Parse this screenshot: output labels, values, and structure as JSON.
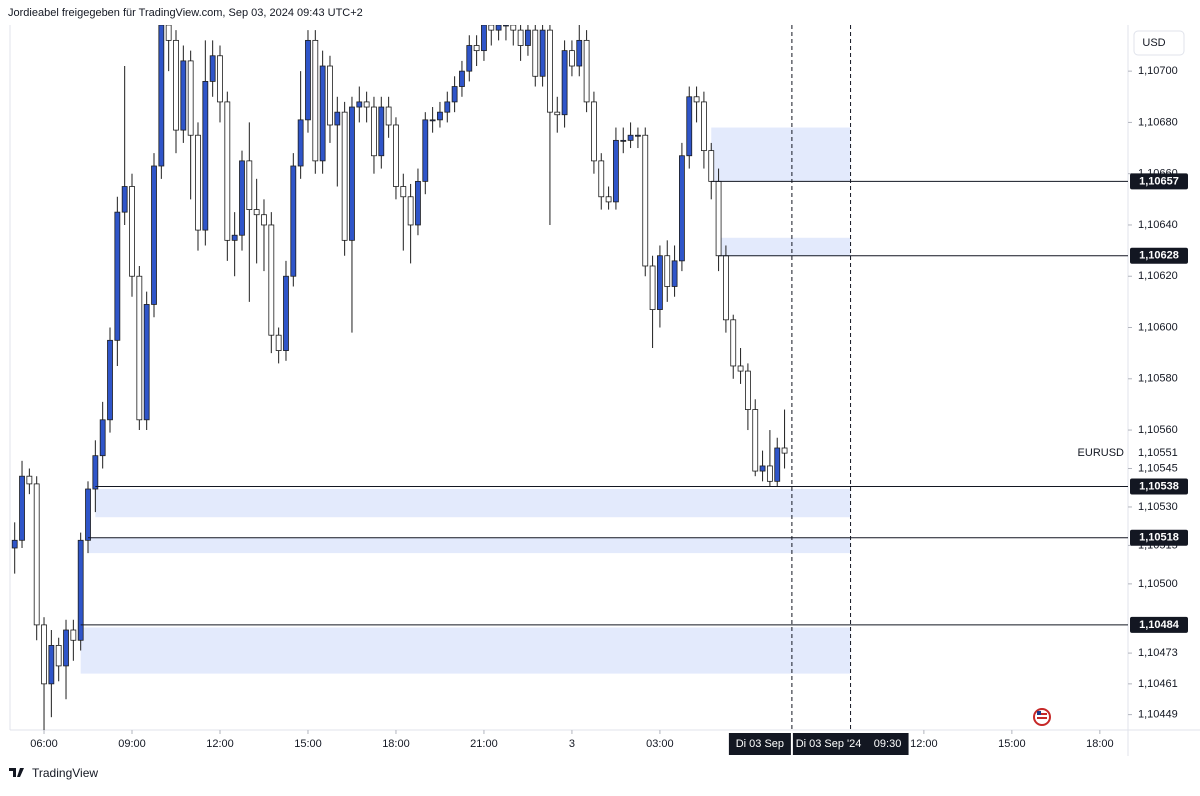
{
  "header": "Jordieabel freigegeben für TradingView.com, Sep 03, 2024 09:43 UTC+2",
  "footer": "TradingView",
  "chart_data": {
    "type": "candlestick",
    "currency": "USD",
    "xlim": [
      4.84,
      42.96
    ],
    "ylim": [
      1.10443,
      1.10718
    ],
    "xticks": [
      {
        "value": 6,
        "label": "06:00"
      },
      {
        "value": 9,
        "label": "09:00"
      },
      {
        "value": 12,
        "label": "12:00"
      },
      {
        "value": 15,
        "label": "15:00"
      },
      {
        "value": 18,
        "label": "18:00"
      },
      {
        "value": 21,
        "label": "21:00"
      },
      {
        "value": 24,
        "label": "3"
      },
      {
        "value": 27,
        "label": "03:00"
      },
      {
        "value": 36,
        "label": "12:00"
      },
      {
        "value": 39,
        "label": "15:00"
      },
      {
        "value": 42,
        "label": "18:00"
      }
    ],
    "yticks": [
      {
        "value": 1.107,
        "label": "1,10700"
      },
      {
        "value": 1.1068,
        "label": "1,10680"
      },
      {
        "value": 1.1066,
        "label": "1,10660"
      },
      {
        "value": 1.1064,
        "label": "1,10640"
      },
      {
        "value": 1.1062,
        "label": "1,10620"
      },
      {
        "value": 1.106,
        "label": "1,10600"
      },
      {
        "value": 1.1058,
        "label": "1,10580"
      },
      {
        "value": 1.1056,
        "label": "1,10560"
      },
      {
        "value": 1.10545,
        "label": "1,10545"
      },
      {
        "value": 1.1053,
        "label": "1,10530"
      },
      {
        "value": 1.10515,
        "label": "1,10515"
      },
      {
        "value": 1.105,
        "label": "1,10500"
      },
      {
        "value": 1.10473,
        "label": "1,10473"
      },
      {
        "value": 1.10461,
        "label": "1,10461"
      },
      {
        "value": 1.10449,
        "label": "1,10449"
      }
    ],
    "x": [
      5,
      5.25,
      5.5,
      5.75,
      6,
      6.25,
      6.5,
      6.75,
      7,
      7.25,
      7.5,
      7.75,
      8,
      8.25,
      8.5,
      8.75,
      9,
      9.25,
      9.5,
      9.75,
      10,
      10.25,
      10.5,
      10.75,
      11,
      11.25,
      11.5,
      11.75,
      12,
      12.25,
      12.5,
      12.75,
      13,
      13.25,
      13.5,
      13.75,
      14,
      14.25,
      14.5,
      14.75,
      15,
      15.25,
      15.5,
      15.75,
      16,
      16.25,
      16.5,
      16.75,
      17,
      17.25,
      17.5,
      17.75,
      18,
      18.25,
      18.5,
      18.75,
      19,
      19.25,
      19.5,
      19.75,
      20,
      20.25,
      20.5,
      20.75,
      21,
      21.25,
      21.5,
      21.75,
      22,
      22.25,
      22.5,
      22.75,
      23,
      23.25,
      23.5,
      23.75,
      24,
      24.25,
      24.5,
      24.75,
      25,
      25.25,
      25.5,
      25.75,
      26,
      26.25,
      26.5,
      26.75,
      27,
      27.25,
      27.5,
      27.75,
      28,
      28.25,
      28.5,
      28.75,
      29,
      29.25,
      29.5,
      29.75,
      30,
      30.25,
      30.5,
      30.75,
      31,
      31.25
    ],
    "series": [
      {
        "name": "EURUSD",
        "up_color": "#2f55c9",
        "down_color": "#ffffff",
        "outline": "#1e1e1e",
        "open": [
          1.10514,
          1.10517,
          1.10542,
          1.10539,
          1.10484,
          1.10461,
          1.10476,
          1.10468,
          1.10482,
          1.10478,
          1.10517,
          1.10537,
          1.1055,
          1.10564,
          1.10595,
          1.10645,
          1.10655,
          1.1062,
          1.10564,
          1.10609,
          1.10663,
          1.10718,
          1.10712,
          1.10677,
          1.10704,
          1.10675,
          1.10638,
          1.10696,
          1.10706,
          1.10688,
          1.10634,
          1.10636,
          1.10665,
          1.10646,
          1.10644,
          1.1064,
          1.10597,
          1.10591,
          1.1062,
          1.10663,
          1.10681,
          1.10712,
          1.10665,
          1.10702,
          1.10679,
          1.10684,
          1.10634,
          1.10686,
          1.10688,
          1.10686,
          1.10667,
          1.10686,
          1.10679,
          1.10655,
          1.10651,
          1.1064,
          1.10657,
          1.10681,
          1.10681,
          1.10684,
          1.10688,
          1.10694,
          1.107,
          1.1071,
          1.10708,
          1.10718,
          1.10716,
          1.10718,
          1.10718,
          1.10716,
          1.1071,
          1.10716,
          1.10698,
          1.10716,
          1.10684,
          1.10683,
          1.10708,
          1.10702,
          1.10712,
          1.10688,
          1.10665,
          1.10651,
          1.10649,
          1.10673,
          1.10673,
          1.10675,
          1.10675,
          1.10624,
          1.10607,
          1.10628,
          1.10616,
          1.10626,
          1.10667,
          1.1069,
          1.10688,
          1.10669,
          1.10657,
          1.10628,
          1.10603,
          1.10585,
          1.10583,
          1.10568,
          1.10544,
          1.10546,
          1.1054,
          1.10553
        ],
        "high": [
          1.10524,
          1.10548,
          1.10545,
          1.10542,
          1.10487,
          1.10482,
          1.10479,
          1.10486,
          1.10486,
          1.1052,
          1.1054,
          1.10556,
          1.10571,
          1.106,
          1.10651,
          1.10702,
          1.1066,
          1.10624,
          1.10614,
          1.10668,
          1.10718,
          1.10718,
          1.10716,
          1.1071,
          1.10708,
          1.1068,
          1.10712,
          1.10712,
          1.1071,
          1.10692,
          1.10645,
          1.10669,
          1.1068,
          1.10658,
          1.1065,
          1.10645,
          1.106,
          1.10626,
          1.10668,
          1.107,
          1.10716,
          1.10716,
          1.10708,
          1.10706,
          1.1069,
          1.10688,
          1.1069,
          1.10694,
          1.10692,
          1.1069,
          1.1069,
          1.1069,
          1.10682,
          1.1066,
          1.10656,
          1.10662,
          1.10684,
          1.10686,
          1.10688,
          1.10692,
          1.10698,
          1.10704,
          1.10714,
          1.10714,
          1.10718,
          1.10718,
          1.10718,
          1.10718,
          1.10718,
          1.10718,
          1.10718,
          1.10718,
          1.10718,
          1.10718,
          1.1069,
          1.10712,
          1.10712,
          1.10718,
          1.10716,
          1.10692,
          1.10668,
          1.10655,
          1.10678,
          1.10678,
          1.1068,
          1.10678,
          1.10678,
          1.10628,
          1.10632,
          1.10634,
          1.10632,
          1.10672,
          1.10694,
          1.10694,
          1.10692,
          1.10672,
          1.10662,
          1.10632,
          1.10605,
          1.10592,
          1.10586,
          1.10572,
          1.10552,
          1.1056,
          1.10557,
          1.10568
        ],
        "low": [
          1.10504,
          1.10514,
          1.10535,
          1.10478,
          1.10443,
          1.10448,
          1.10462,
          1.10455,
          1.1047,
          1.10474,
          1.10512,
          1.10528,
          1.10545,
          1.10559,
          1.10585,
          1.1064,
          1.10612,
          1.1056,
          1.1056,
          1.10604,
          1.10658,
          1.107,
          1.10668,
          1.10672,
          1.1065,
          1.1063,
          1.10632,
          1.1069,
          1.1068,
          1.10626,
          1.1062,
          1.1063,
          1.1061,
          1.10625,
          1.10622,
          1.1059,
          1.10586,
          1.10587,
          1.10616,
          1.10658,
          1.10676,
          1.1066,
          1.1066,
          1.10672,
          1.10655,
          1.10628,
          1.10598,
          1.1068,
          1.1068,
          1.1066,
          1.10662,
          1.10674,
          1.1065,
          1.1063,
          1.10625,
          1.10636,
          1.10652,
          1.10676,
          1.10678,
          1.1068,
          1.10684,
          1.1069,
          1.10696,
          1.10702,
          1.10704,
          1.1071,
          1.10712,
          1.10712,
          1.1071,
          1.10704,
          1.10706,
          1.10694,
          1.10694,
          1.1064,
          1.10676,
          1.10678,
          1.10698,
          1.10698,
          1.10684,
          1.1066,
          1.10646,
          1.10646,
          1.10646,
          1.10668,
          1.1067,
          1.1067,
          1.1062,
          1.10592,
          1.106,
          1.1061,
          1.10612,
          1.10622,
          1.10662,
          1.1068,
          1.10662,
          1.1065,
          1.10622,
          1.10598,
          1.1058,
          1.10578,
          1.1056,
          1.10542,
          1.1054,
          1.10538,
          1.10538,
          1.10545
        ],
        "close": [
          1.10517,
          1.10542,
          1.10539,
          1.10484,
          1.10461,
          1.10476,
          1.10468,
          1.10482,
          1.10478,
          1.10517,
          1.10537,
          1.1055,
          1.10564,
          1.10595,
          1.10645,
          1.10655,
          1.1062,
          1.10564,
          1.10609,
          1.10663,
          1.10718,
          1.10712,
          1.10677,
          1.10704,
          1.10675,
          1.10638,
          1.10696,
          1.10706,
          1.10688,
          1.10634,
          1.10636,
          1.10665,
          1.10646,
          1.10644,
          1.1064,
          1.10597,
          1.10591,
          1.1062,
          1.10663,
          1.10681,
          1.10712,
          1.10665,
          1.10702,
          1.10679,
          1.10684,
          1.10634,
          1.10686,
          1.10688,
          1.10686,
          1.10667,
          1.10686,
          1.10679,
          1.10655,
          1.10651,
          1.1064,
          1.10657,
          1.10681,
          1.10681,
          1.10684,
          1.10688,
          1.10694,
          1.107,
          1.1071,
          1.10708,
          1.10718,
          1.10716,
          1.10718,
          1.10718,
          1.10716,
          1.1071,
          1.10716,
          1.10698,
          1.10716,
          1.10684,
          1.10683,
          1.10708,
          1.10702,
          1.10712,
          1.10688,
          1.10665,
          1.10651,
          1.10649,
          1.10673,
          1.10673,
          1.10675,
          1.10675,
          1.10624,
          1.10607,
          1.10628,
          1.10616,
          1.10626,
          1.10667,
          1.1069,
          1.10688,
          1.10669,
          1.10657,
          1.10628,
          1.10603,
          1.10585,
          1.10583,
          1.10568,
          1.10544,
          1.10546,
          1.1054,
          1.10553,
          1.10551
        ]
      }
    ],
    "last_price": {
      "value": 1.10551,
      "label": "1,10551"
    },
    "zone_color": "#e3eafc",
    "zones": [
      {
        "from": 1.10678,
        "to": 1.10657,
        "start": 28.75
      },
      {
        "from": 1.10635,
        "to": 1.10628,
        "start": 29
      },
      {
        "from": 1.10537,
        "to": 1.10526,
        "start": 7.75
      },
      {
        "from": 1.10518,
        "to": 1.10512,
        "start": 7.5
      },
      {
        "from": 1.10483,
        "to": 1.10465,
        "start": 7.25
      }
    ],
    "levels": [
      {
        "value": 1.10657,
        "label": "1,10657",
        "start": 28.75
      },
      {
        "value": 1.10628,
        "label": "1,10628",
        "start": 29
      },
      {
        "value": 1.10538,
        "label": "1,10538",
        "start": 7.75
      },
      {
        "value": 1.10518,
        "label": "1,10518",
        "start": 7.5
      },
      {
        "value": 1.10484,
        "label": "1,10484",
        "start": 7.25
      }
    ],
    "vlines": [
      31.5,
      33.5
    ],
    "cursor_labels": [
      "Di 03 Sep",
      "Di 03 Sep '24",
      "09:30"
    ]
  }
}
